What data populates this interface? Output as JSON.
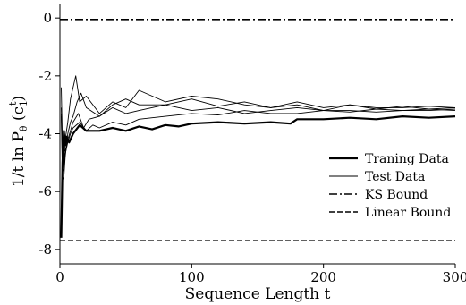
{
  "chart_data": {
    "type": "line",
    "title": "",
    "xlabel": "Sequence Length t",
    "ylabel_main": "1/t   ln P",
    "ylabel_sub": "θ",
    "ylabel_paren_open": " (c",
    "ylabel_sup": "t",
    "ylabel_sub2": "1",
    "ylabel_paren_close": ")",
    "xlim": [
      0,
      300
    ],
    "ylim": [
      -8.5,
      0.5
    ],
    "xticks": [
      0,
      100,
      200,
      300
    ],
    "xtick_labels": [
      "0",
      "100",
      "200",
      "300"
    ],
    "yticks": [
      0,
      -2,
      -4,
      -6,
      -8
    ],
    "ytick_labels": [
      "0",
      "-2",
      "-4",
      "-6",
      "-8"
    ],
    "grid": false,
    "legend_position": "right",
    "series": [
      {
        "name": "Traning Data",
        "style": "thick",
        "x": [
          1,
          2,
          3,
          4,
          5,
          7,
          10,
          15,
          20,
          30,
          40,
          50,
          60,
          70,
          80,
          90,
          100,
          120,
          140,
          160,
          175,
          180,
          200,
          220,
          240,
          260,
          280,
          300
        ],
        "y": [
          -7.6,
          -5.0,
          -3.9,
          -4.4,
          -4.1,
          -4.3,
          -4.0,
          -3.7,
          -3.9,
          -3.9,
          -3.8,
          -3.9,
          -3.75,
          -3.85,
          -3.7,
          -3.75,
          -3.65,
          -3.6,
          -3.65,
          -3.6,
          -3.65,
          -3.5,
          -3.5,
          -3.45,
          -3.5,
          -3.4,
          -3.45,
          -3.4
        ]
      },
      {
        "name": "Test Data",
        "style": "thin",
        "x": [
          1,
          2,
          3,
          4,
          6,
          8,
          10,
          12,
          15,
          20,
          30,
          40,
          50,
          60,
          80,
          100,
          120,
          140,
          160,
          180,
          200,
          220,
          240,
          260,
          280,
          300
        ],
        "y": [
          -2.4,
          -4.5,
          -5.2,
          -4.2,
          -3.6,
          -2.8,
          -2.4,
          -2.0,
          -2.9,
          -2.7,
          -3.3,
          -2.9,
          -3.1,
          -2.5,
          -2.9,
          -2.7,
          -2.8,
          -3.0,
          -3.1,
          -2.9,
          -3.1,
          -3.0,
          -3.1,
          -3.1,
          -3.05,
          -3.1
        ]
      },
      {
        "name": "",
        "style": "thin",
        "x": [
          1,
          2,
          3,
          4,
          6,
          8,
          10,
          13,
          16,
          20,
          30,
          40,
          50,
          60,
          80,
          100,
          120,
          140,
          160,
          180,
          200,
          220,
          240,
          260,
          280,
          300
        ],
        "y": [
          -3.4,
          -5.6,
          -5.5,
          -4.8,
          -4.0,
          -3.6,
          -3.4,
          -2.9,
          -2.6,
          -3.1,
          -3.4,
          -3.0,
          -2.8,
          -3.0,
          -3.0,
          -2.8,
          -3.05,
          -2.9,
          -3.1,
          -3.0,
          -3.2,
          -3.0,
          -3.15,
          -3.05,
          -3.15,
          -3.1
        ]
      },
      {
        "name": "",
        "style": "thin",
        "x": [
          1,
          2,
          3,
          4,
          6,
          8,
          10,
          14,
          18,
          22,
          30,
          40,
          50,
          60,
          80,
          100,
          120,
          140,
          160,
          180,
          200,
          220,
          240,
          260,
          280,
          300
        ],
        "y": [
          -3.1,
          -4.9,
          -4.5,
          -4.6,
          -4.2,
          -3.9,
          -3.6,
          -3.3,
          -3.8,
          -3.5,
          -3.4,
          -3.1,
          -3.3,
          -3.2,
          -3.0,
          -3.2,
          -3.1,
          -3.3,
          -3.2,
          -3.1,
          -3.2,
          -3.25,
          -3.15,
          -3.2,
          -3.15,
          -3.2
        ]
      },
      {
        "name": "",
        "style": "thin",
        "x": [
          1,
          2,
          3,
          4,
          6,
          8,
          10,
          15,
          20,
          25,
          30,
          40,
          50,
          60,
          80,
          100,
          120,
          140,
          160,
          180,
          200,
          220,
          240,
          260,
          280,
          300
        ],
        "y": [
          -3.3,
          -5.2,
          -5.3,
          -4.7,
          -4.3,
          -4.0,
          -3.8,
          -3.6,
          -3.9,
          -3.7,
          -3.8,
          -3.6,
          -3.7,
          -3.5,
          -3.4,
          -3.3,
          -3.35,
          -3.2,
          -3.3,
          -3.3,
          -3.2,
          -3.2,
          -3.25,
          -3.2,
          -3.2,
          -3.15
        ]
      }
    ],
    "bounds": [
      {
        "name": "KS Bound",
        "style": "dashdot",
        "y": -0.05
      },
      {
        "name": "Linear Bound",
        "style": "dashed",
        "y": -7.7
      }
    ]
  }
}
